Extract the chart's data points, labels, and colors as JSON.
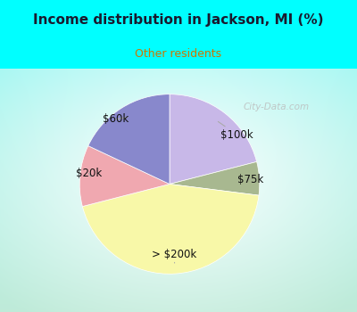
{
  "title": "Income distribution in Jackson, MI (%)",
  "subtitle": "Other residents",
  "title_color": "#1a1a2e",
  "subtitle_color": "#cc7700",
  "background_top": "#00ffff",
  "slices": [
    {
      "label": "$100k",
      "value": 21,
      "color": "#c8b8e8"
    },
    {
      "label": "$75k",
      "value": 6,
      "color": "#a8b890"
    },
    {
      "label": "> $200k",
      "value": 44,
      "color": "#f8f8a8"
    },
    {
      "label": "$20k",
      "value": 11,
      "color": "#f0a8b0"
    },
    {
      "label": "$60k",
      "value": 18,
      "color": "#8888cc"
    }
  ],
  "label_color": "#111111",
  "label_fontsize": 8.5,
  "watermark": "City-Data.com",
  "watermark_color": "#bbbbbb",
  "line_color": "#aaaaaa"
}
